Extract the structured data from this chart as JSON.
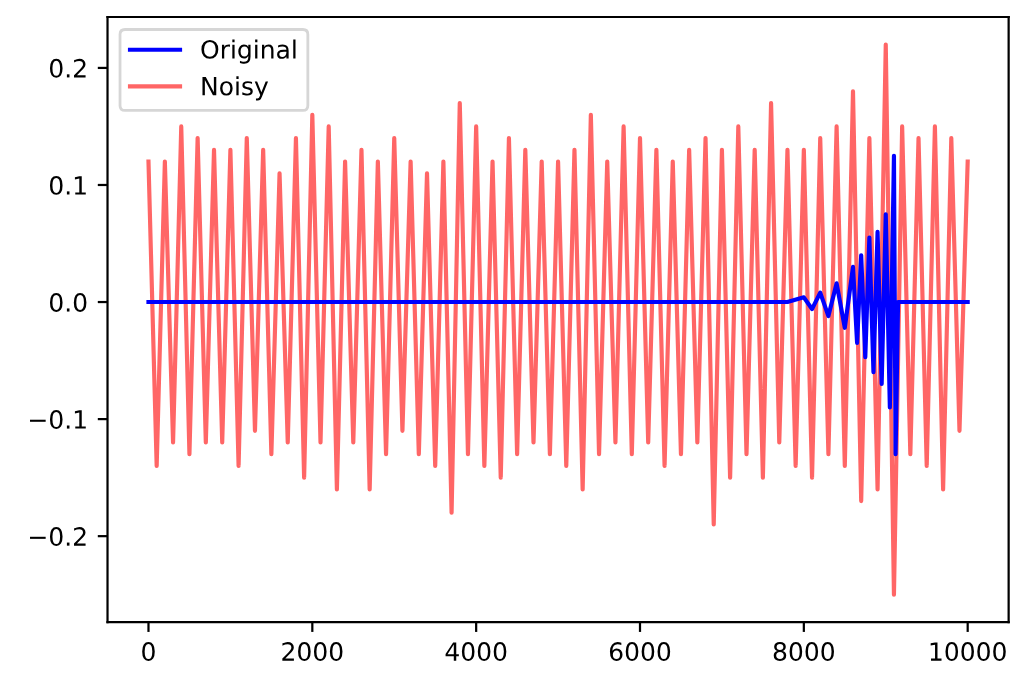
{
  "chart_data": {
    "type": "line",
    "xlim": [
      -500,
      10500
    ],
    "ylim": [
      -0.2735,
      0.2435
    ],
    "xticks": [
      0,
      2000,
      4000,
      6000,
      8000,
      10000
    ],
    "yticks": [
      {
        "value": -0.2,
        "label": "−0.2"
      },
      {
        "value": -0.1,
        "label": "−0.1"
      },
      {
        "value": 0,
        "label": "0.0"
      },
      {
        "value": 0.1,
        "label": "0.1"
      },
      {
        "value": 0.2,
        "label": "0.2"
      }
    ],
    "series": [
      {
        "name": "Noisy",
        "color": "#ff6666",
        "x": [
          0,
          100,
          200,
          300,
          400,
          500,
          600,
          700,
          800,
          900,
          1000,
          1100,
          1200,
          1300,
          1400,
          1500,
          1600,
          1700,
          1800,
          1900,
          2000,
          2100,
          2200,
          2300,
          2400,
          2500,
          2600,
          2700,
          2800,
          2900,
          3000,
          3100,
          3200,
          3300,
          3400,
          3500,
          3600,
          3700,
          3800,
          3900,
          4000,
          4100,
          4200,
          4300,
          4400,
          4500,
          4600,
          4700,
          4800,
          4900,
          5000,
          5100,
          5200,
          5300,
          5400,
          5500,
          5600,
          5700,
          5800,
          5900,
          6000,
          6100,
          6200,
          6300,
          6400,
          6500,
          6600,
          6700,
          6800,
          6900,
          7000,
          7100,
          7200,
          7300,
          7400,
          7500,
          7600,
          7700,
          7800,
          7900,
          8000,
          8100,
          8200,
          8300,
          8400,
          8500,
          8600,
          8700,
          8800,
          8900,
          9000,
          9100,
          9200,
          9300,
          9400,
          9500,
          9600,
          9700,
          9800,
          9900,
          10000
        ],
        "values": [
          0.12,
          -0.14,
          0.12,
          -0.12,
          0.15,
          -0.13,
          0.14,
          -0.12,
          0.13,
          -0.12,
          0.13,
          -0.14,
          0.14,
          -0.11,
          0.13,
          -0.13,
          0.11,
          -0.12,
          0.14,
          -0.15,
          0.16,
          -0.12,
          0.15,
          -0.16,
          0.12,
          -0.12,
          0.13,
          -0.16,
          0.12,
          -0.13,
          0.14,
          -0.11,
          0.12,
          -0.13,
          0.11,
          -0.14,
          0.12,
          -0.18,
          0.17,
          -0.13,
          0.15,
          -0.14,
          0.12,
          -0.15,
          0.14,
          -0.13,
          0.13,
          -0.12,
          0.12,
          -0.13,
          0.12,
          -0.14,
          0.13,
          -0.16,
          0.16,
          -0.13,
          0.12,
          -0.12,
          0.15,
          -0.13,
          0.14,
          -0.12,
          0.13,
          -0.14,
          0.12,
          -0.13,
          0.13,
          -0.12,
          0.14,
          -0.19,
          0.13,
          -0.15,
          0.15,
          -0.13,
          0.13,
          -0.15,
          0.17,
          -0.12,
          0.13,
          -0.14,
          0.13,
          -0.15,
          0.14,
          -0.13,
          0.15,
          -0.14,
          0.18,
          -0.17,
          0.14,
          -0.16,
          0.22,
          -0.25,
          0.15,
          -0.13,
          0.14,
          -0.14,
          0.15,
          -0.16,
          0.14,
          -0.11,
          0.12
        ]
      },
      {
        "name": "Original",
        "color": "#0000ff",
        "x": [
          0,
          7800,
          8000,
          8100,
          8200,
          8300,
          8400,
          8500,
          8600,
          8650,
          8700,
          8750,
          8800,
          8850,
          8900,
          8950,
          9000,
          9050,
          9100,
          9120,
          9150,
          10000
        ],
        "values": [
          0,
          0,
          0.004,
          -0.006,
          0.008,
          -0.012,
          0.016,
          -0.022,
          0.03,
          -0.035,
          0.04,
          -0.047,
          0.055,
          -0.06,
          0.06,
          -0.07,
          0.075,
          -0.09,
          0.125,
          -0.13,
          0,
          0
        ]
      }
    ],
    "legend": "top left",
    "grid": false,
    "line_style": "solid",
    "marker": "none"
  }
}
